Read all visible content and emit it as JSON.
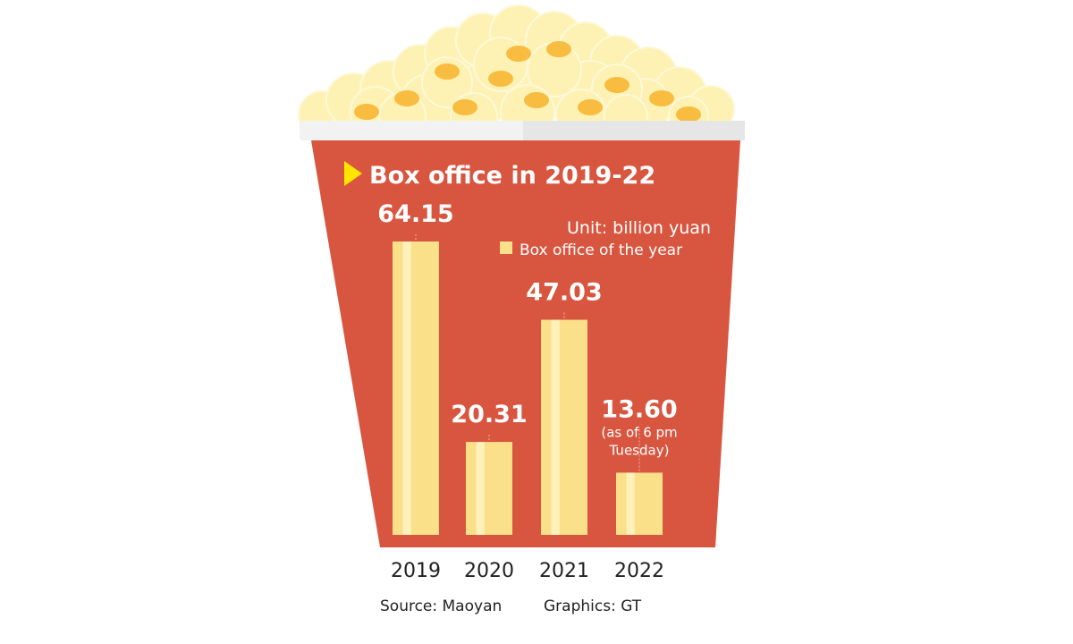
{
  "chart_data": {
    "type": "bar",
    "title": "Box office in 2019-22",
    "unit": "Unit: billion yuan",
    "legend": [
      {
        "label": "Box office of the year",
        "color": "#fbe08a"
      }
    ],
    "legend_position": "top-right",
    "categories": [
      "2019",
      "2020",
      "2021",
      "2022"
    ],
    "values": [
      64.15,
      20.31,
      47.03,
      13.6
    ],
    "value_labels": [
      "64.15",
      "20.31",
      "47.03",
      "13.60"
    ],
    "annotations": [
      {
        "category": "2022",
        "lines": [
          "(as of 6 pm",
          "Tuesday)"
        ]
      }
    ],
    "ylim": [
      0,
      64.15
    ],
    "grid": false
  },
  "footer": {
    "source": "Source: Maoyan",
    "graphics": "Graphics: GT"
  },
  "colors": {
    "bucket": "#d85640",
    "bar_fill": "#fbe08a",
    "bar_stripe": "#fff3c2",
    "title_marker": "#ffe500",
    "popcorn": "#fdf2b4",
    "popcorn_kernel": "#f7b733",
    "rim": "#f2f2f2"
  }
}
